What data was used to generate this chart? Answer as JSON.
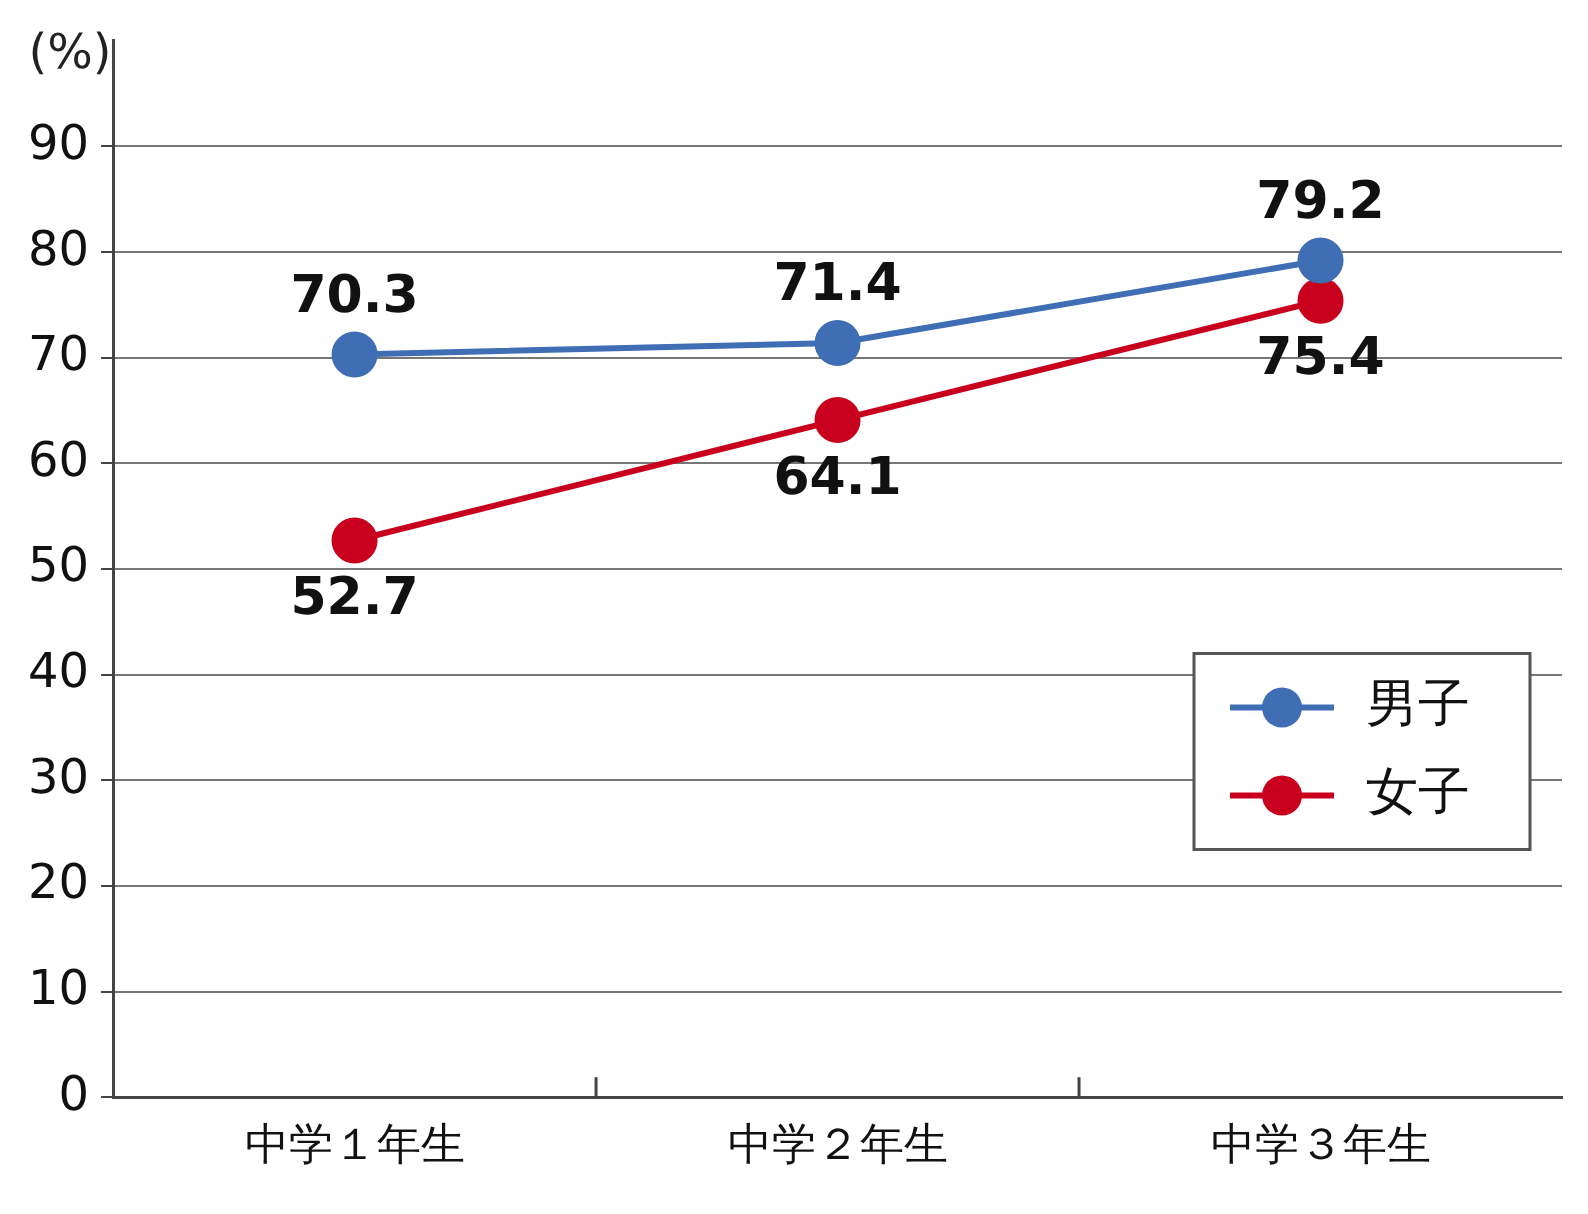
{
  "chart_data": {
    "type": "line",
    "ylabel": "(%)",
    "categories": [
      "中学１年生",
      "中学２年生",
      "中学３年生"
    ],
    "series": [
      {
        "name": "男子",
        "color": "#3f6eb5",
        "values": [
          70.3,
          71.4,
          79.2
        ]
      },
      {
        "name": "女子",
        "color": "#c8001e",
        "values": [
          52.7,
          64.1,
          75.4
        ]
      }
    ],
    "ylim": [
      0,
      100
    ],
    "yticks": [
      0,
      10,
      20,
      30,
      40,
      50,
      60,
      70,
      80,
      90
    ],
    "grid": "y",
    "legend": "right",
    "marker": "circle",
    "line_style": "solid",
    "data_labels": true
  }
}
